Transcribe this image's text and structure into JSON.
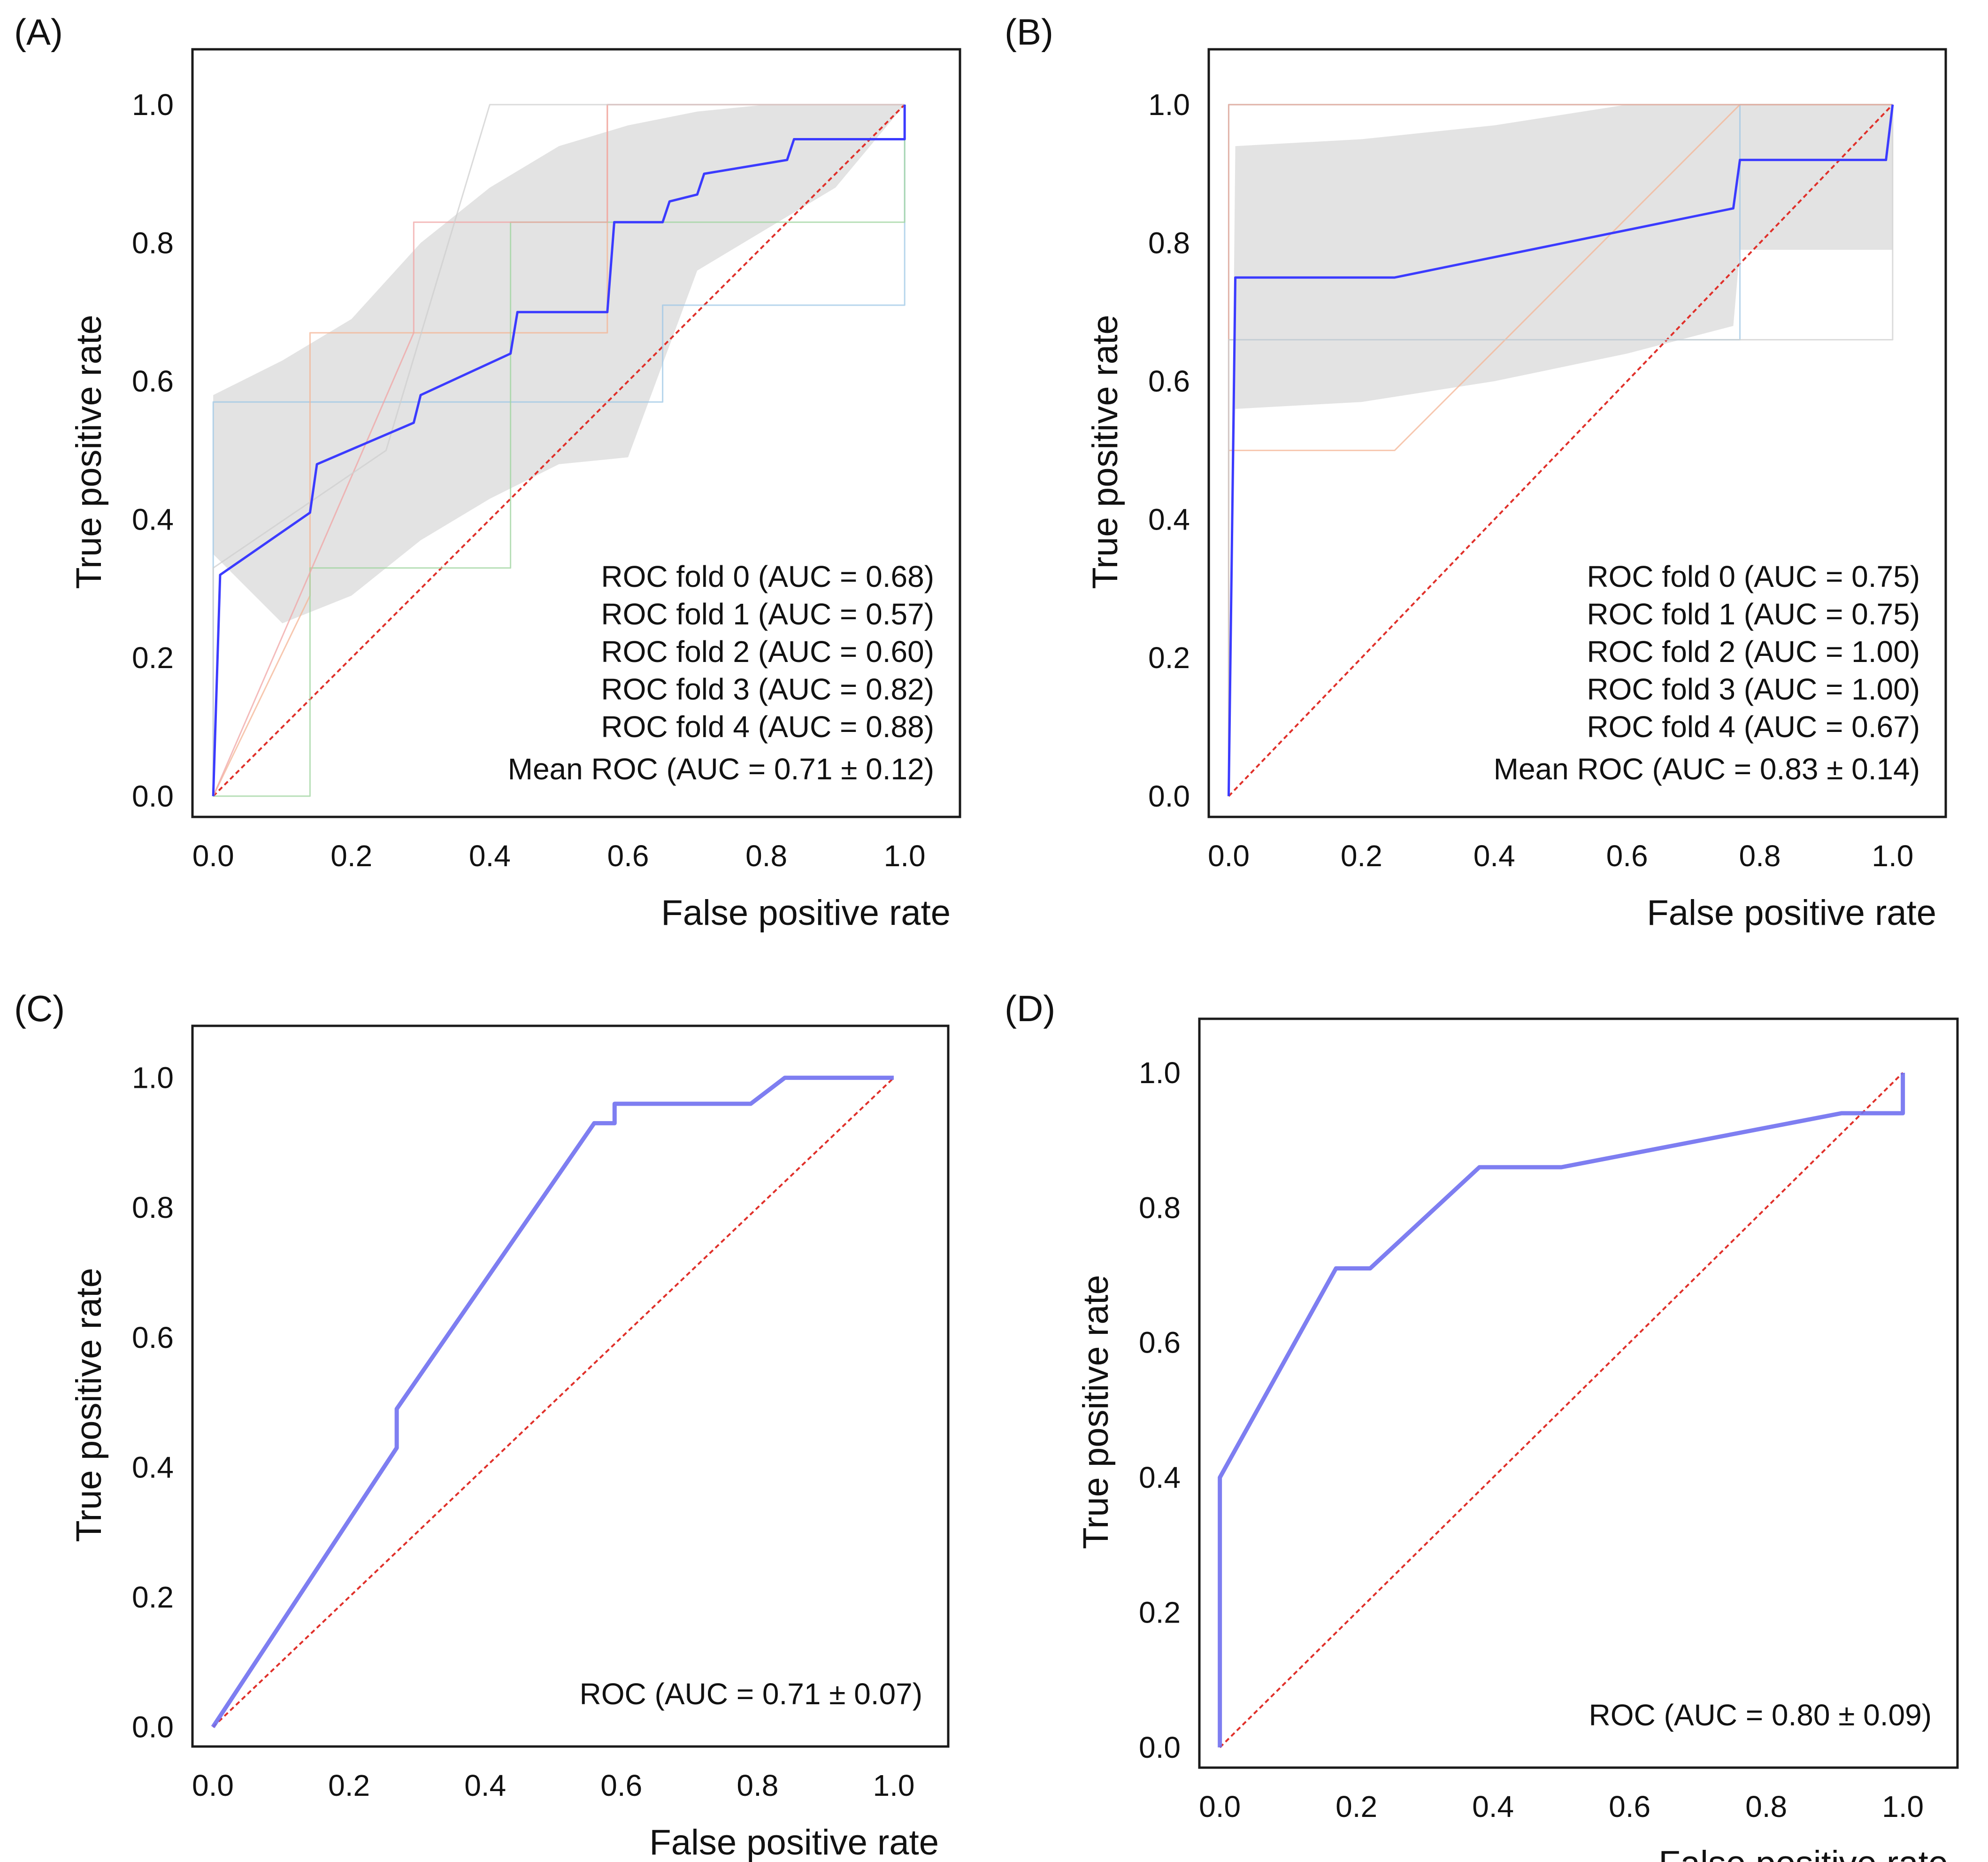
{
  "chart_data": [
    {
      "panel_label": "(A)",
      "type": "line",
      "xlabel": "False positive rate",
      "ylabel": "True positive rate",
      "xlim": [
        -0.03,
        1.08
      ],
      "ylim": [
        -0.03,
        1.08
      ],
      "xticks": [
        0.0,
        0.2,
        0.4,
        0.6,
        0.8,
        1.0
      ],
      "yticks": [
        0.0,
        0.2,
        0.4,
        0.6,
        0.8,
        1.0
      ],
      "tick_labels": [
        "0.0",
        "0.2",
        "0.4",
        "0.6",
        "0.8",
        "1.0"
      ],
      "grid": false,
      "legend_position": "bottom-right",
      "band": {
        "x": [
          0.0,
          0.1,
          0.2,
          0.3,
          0.4,
          0.5,
          0.6,
          0.7,
          0.8,
          0.9,
          1.0
        ],
        "upper": [
          0.58,
          0.63,
          0.69,
          0.8,
          0.88,
          0.94,
          0.97,
          0.99,
          1.0,
          1.0,
          1.0
        ],
        "lower": [
          0.35,
          0.25,
          0.29,
          0.37,
          0.43,
          0.48,
          0.49,
          0.76,
          0.82,
          0.88,
          1.0
        ]
      },
      "series": [
        {
          "name": "ROC fold 0 (AUC = 0.68)",
          "color": "#9ec7e6",
          "x": [
            0.0,
            0.0,
            0.65,
            0.65,
            1.0,
            1.0
          ],
          "y": [
            0.0,
            0.57,
            0.57,
            0.71,
            0.71,
            1.0
          ]
        },
        {
          "name": "ROC fold 1 (AUC = 0.57)",
          "color": "#f4b494",
          "x": [
            0.0,
            0.14,
            0.14,
            0.14,
            0.57,
            0.57,
            1.0
          ],
          "y": [
            0.0,
            0.29,
            0.33,
            0.67,
            0.67,
            1.0,
            1.0
          ]
        },
        {
          "name": "ROC fold 2 (AUC = 0.60)",
          "color": "#9fd49f",
          "x": [
            0.0,
            0.0,
            0.14,
            0.14,
            0.43,
            0.43,
            1.0,
            1.0
          ],
          "y": [
            0.0,
            0.0,
            0.0,
            0.33,
            0.33,
            0.83,
            0.83,
            1.0
          ]
        },
        {
          "name": "ROC fold 3 (AUC = 0.82)",
          "color": "#f0a4a4",
          "x": [
            0.0,
            0.29,
            0.29,
            0.57,
            0.57,
            1.0
          ],
          "y": [
            0.0,
            0.67,
            0.83,
            0.83,
            1.0,
            1.0
          ]
        },
        {
          "name": "ROC fold 4 (AUC = 0.88)",
          "color": "#cfcfcf",
          "x": [
            0.0,
            0.0,
            0.25,
            0.4,
            0.6,
            0.8,
            1.0
          ],
          "y": [
            0.0,
            0.33,
            0.5,
            1.0,
            1.0,
            1.0,
            1.0
          ]
        },
        {
          "name": "Mean ROC (AUC = 0.71 ± 0.12)",
          "color": "#3b3bff",
          "x": [
            0.0,
            0.01,
            0.14,
            0.15,
            0.29,
            0.3,
            0.43,
            0.44,
            0.57,
            0.58,
            0.65,
            0.66,
            0.7,
            0.71,
            0.83,
            0.84,
            1.0,
            1.0
          ],
          "y": [
            0.0,
            0.32,
            0.41,
            0.48,
            0.54,
            0.58,
            0.64,
            0.7,
            0.7,
            0.83,
            0.83,
            0.86,
            0.87,
            0.9,
            0.92,
            0.95,
            0.95,
            1.0
          ]
        }
      ],
      "diagonal": {
        "color": "#e0302a"
      }
    },
    {
      "panel_label": "(B)",
      "type": "line",
      "xlabel": "False positive rate",
      "ylabel": "True positive rate",
      "xlim": [
        -0.03,
        1.08
      ],
      "ylim": [
        -0.03,
        1.08
      ],
      "xticks": [
        0.0,
        0.2,
        0.4,
        0.6,
        0.8,
        1.0
      ],
      "yticks": [
        0.0,
        0.2,
        0.4,
        0.6,
        0.8,
        1.0
      ],
      "tick_labels": [
        "0.0",
        "0.2",
        "0.4",
        "0.6",
        "0.8",
        "1.0"
      ],
      "grid": false,
      "legend_position": "bottom-right",
      "band": {
        "x": [
          0.0,
          0.01,
          0.2,
          0.4,
          0.6,
          0.76,
          0.77,
          1.0
        ],
        "upper": [
          0.0,
          0.94,
          0.95,
          0.97,
          1.0,
          1.0,
          1.0,
          1.0
        ],
        "lower": [
          0.0,
          0.56,
          0.57,
          0.6,
          0.64,
          0.68,
          0.79,
          0.79
        ]
      },
      "series": [
        {
          "name": "ROC fold 0 (AUC = 0.75)",
          "color": "#9ec7e6",
          "x": [
            0.0,
            0.0,
            0.77,
            0.77,
            1.0,
            1.0
          ],
          "y": [
            0.0,
            0.66,
            0.66,
            1.0,
            1.0,
            1.0
          ]
        },
        {
          "name": "ROC fold 1 (AUC = 0.75)",
          "color": "#f4b494",
          "x": [
            0.0,
            0.0,
            0.25,
            0.77,
            1.0
          ],
          "y": [
            0.0,
            0.5,
            0.5,
            1.0,
            1.0
          ]
        },
        {
          "name": "ROC fold 2 (AUC = 1.00)",
          "color": "#9fd49f",
          "x": [
            0.0,
            0.0,
            1.0
          ],
          "y": [
            0.0,
            1.0,
            1.0
          ]
        },
        {
          "name": "ROC fold 3 (AUC = 1.00)",
          "color": "#f0a4a4",
          "x": [
            0.0,
            0.0,
            1.0
          ],
          "y": [
            0.0,
            1.0,
            1.0
          ]
        },
        {
          "name": "ROC fold 4 (AUC = 0.67)",
          "color": "#cfcfcf",
          "x": [
            0.0,
            0.0,
            1.0,
            1.0
          ],
          "y": [
            0.0,
            0.66,
            0.66,
            1.0
          ]
        },
        {
          "name": "Mean ROC (AUC = 0.83 ± 0.14)",
          "color": "#3b3bff",
          "x": [
            0.0,
            0.01,
            0.25,
            0.76,
            0.77,
            0.99,
            1.0
          ],
          "y": [
            0.0,
            0.75,
            0.75,
            0.85,
            0.92,
            0.92,
            1.0
          ]
        }
      ],
      "diagonal": {
        "color": "#e0302a"
      }
    },
    {
      "panel_label": "(C)",
      "type": "line",
      "xlabel": "False positive rate",
      "ylabel": "True positive rate",
      "xlim": [
        -0.03,
        1.08
      ],
      "ylim": [
        -0.03,
        1.08
      ],
      "xticks": [
        0.0,
        0.2,
        0.4,
        0.6,
        0.8,
        1.0
      ],
      "yticks": [
        0.0,
        0.2,
        0.4,
        0.6,
        0.8,
        1.0
      ],
      "tick_labels": [
        "0.0",
        "0.2",
        "0.4",
        "0.6",
        "0.8",
        "1.0"
      ],
      "grid": false,
      "legend_position": "bottom-right",
      "series": [
        {
          "name": "ROC (AUC = 0.71 ± 0.07)",
          "color": "#7070f0",
          "x": [
            0.0,
            0.27,
            0.27,
            0.56,
            0.59,
            0.59,
            0.79,
            0.84,
            1.0
          ],
          "y": [
            0.0,
            0.43,
            0.49,
            0.93,
            0.93,
            0.96,
            0.96,
            1.0,
            1.0
          ]
        }
      ],
      "diagonal": {
        "color": "#e0302a"
      }
    },
    {
      "panel_label": "(D)",
      "type": "line",
      "xlabel": "False positive rate",
      "ylabel": "True positive rate",
      "xlim": [
        -0.03,
        1.08
      ],
      "ylim": [
        -0.03,
        1.08
      ],
      "xticks": [
        0.0,
        0.2,
        0.4,
        0.6,
        0.8,
        1.0
      ],
      "yticks": [
        0.0,
        0.2,
        0.4,
        0.6,
        0.8,
        1.0
      ],
      "tick_labels": [
        "0.0",
        "0.2",
        "0.4",
        "0.6",
        "0.8",
        "1.0"
      ],
      "grid": false,
      "legend_position": "bottom-right",
      "series": [
        {
          "name": "ROC (AUC = 0.80 ± 0.09)",
          "color": "#7070f0",
          "x": [
            0.0,
            0.0,
            0.17,
            0.22,
            0.38,
            0.5,
            0.91,
            1.0,
            1.0
          ],
          "y": [
            0.0,
            0.4,
            0.71,
            0.71,
            0.86,
            0.86,
            0.94,
            0.94,
            1.0
          ]
        }
      ],
      "diagonal": {
        "color": "#e0302a"
      }
    }
  ]
}
